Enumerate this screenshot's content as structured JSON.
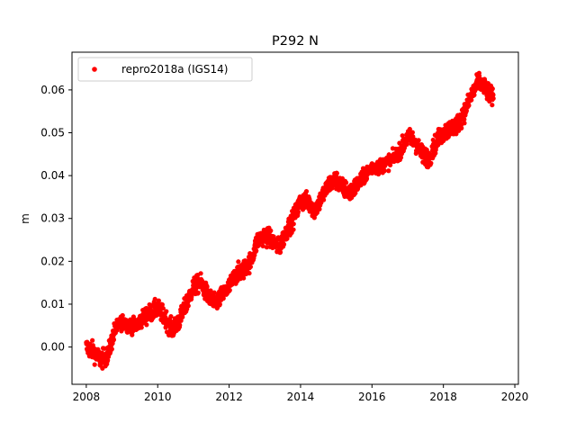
{
  "chart_data": {
    "type": "scatter",
    "title": "P292 N",
    "xlabel": "",
    "ylabel": "m",
    "xlim": [
      2007.6,
      2020.1
    ],
    "ylim": [
      -0.0087,
      0.0688
    ],
    "x_ticks": [
      2008,
      2010,
      2012,
      2014,
      2016,
      2018,
      2020
    ],
    "x_tick_labels": [
      "2008",
      "2010",
      "2012",
      "2014",
      "2016",
      "2018",
      "2020"
    ],
    "y_ticks": [
      0.0,
      0.01,
      0.02,
      0.03,
      0.04,
      0.05,
      0.06
    ],
    "y_tick_labels": [
      "0.00",
      "0.01",
      "0.02",
      "0.03",
      "0.04",
      "0.05",
      "0.06"
    ],
    "grid": false,
    "legend_position": "top-left",
    "marker": "circle",
    "series": [
      {
        "name": "repro2018a (IGS14)",
        "color": "#ff0000",
        "x": [
          2008.0,
          2008.2,
          2008.4,
          2008.6,
          2008.8,
          2009.0,
          2009.2,
          2009.4,
          2009.6,
          2009.8,
          2010.0,
          2010.2,
          2010.4,
          2010.6,
          2010.8,
          2011.0,
          2011.2,
          2011.4,
          2011.6,
          2011.8,
          2012.0,
          2012.2,
          2012.4,
          2012.6,
          2012.8,
          2013.0,
          2013.2,
          2013.4,
          2013.6,
          2013.8,
          2014.0,
          2014.2,
          2014.4,
          2014.6,
          2014.8,
          2015.0,
          2015.2,
          2015.4,
          2015.6,
          2015.8,
          2016.0,
          2016.2,
          2016.4,
          2016.6,
          2016.8,
          2017.0,
          2017.2,
          2017.4,
          2017.6,
          2017.8,
          2018.0,
          2018.2,
          2018.4,
          2018.6,
          2018.8,
          2019.0,
          2019.2,
          2019.4
        ],
        "y": [
          0.0,
          -0.001,
          -0.003,
          -0.002,
          0.004,
          0.006,
          0.005,
          0.005,
          0.007,
          0.008,
          0.009,
          0.007,
          0.004,
          0.006,
          0.01,
          0.014,
          0.015,
          0.012,
          0.01,
          0.012,
          0.014,
          0.017,
          0.018,
          0.02,
          0.025,
          0.026,
          0.025,
          0.023,
          0.027,
          0.03,
          0.034,
          0.034,
          0.032,
          0.035,
          0.038,
          0.039,
          0.037,
          0.036,
          0.038,
          0.04,
          0.042,
          0.042,
          0.043,
          0.044,
          0.046,
          0.049,
          0.048,
          0.045,
          0.044,
          0.048,
          0.05,
          0.051,
          0.052,
          0.055,
          0.059,
          0.062,
          0.06,
          0.058
        ],
        "spread": [
          0.0015,
          0.0015,
          0.0015,
          0.0015,
          0.0012,
          0.0012,
          0.0012,
          0.0012,
          0.0015,
          0.0015,
          0.0015,
          0.0015,
          0.0015,
          0.0015,
          0.0015,
          0.0015,
          0.0015,
          0.0015,
          0.0015,
          0.0015,
          0.0015,
          0.0015,
          0.0015,
          0.0015,
          0.0015,
          0.0015,
          0.0015,
          0.0015,
          0.0015,
          0.0015,
          0.0015,
          0.0015,
          0.0015,
          0.0015,
          0.0015,
          0.0015,
          0.0015,
          0.0015,
          0.0012,
          0.0012,
          0.0012,
          0.0012,
          0.0012,
          0.0012,
          0.0015,
          0.0015,
          0.0015,
          0.0015,
          0.0015,
          0.0015,
          0.0015,
          0.0015,
          0.0015,
          0.0015,
          0.0015,
          0.0015,
          0.0015,
          0.0015
        ]
      }
    ]
  }
}
